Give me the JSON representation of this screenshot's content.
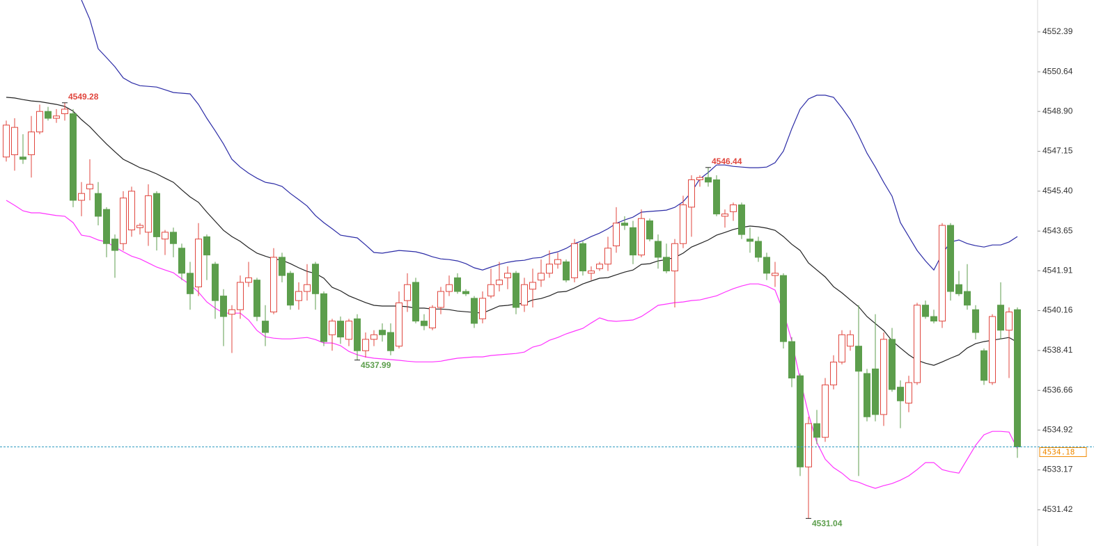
{
  "chart_data": {
    "type": "candlestick",
    "up_color": "#e0463e",
    "down_color": "#5c9e4c",
    "ylim": [
      4529.83,
      4553.79
    ],
    "yticks": [
      4552.39,
      4550.64,
      {
        "value": 4548.9,
        "label": "4548.90"
      },
      4547.15,
      {
        "value": 4545.4,
        "label": "4545.40"
      },
      4543.65,
      4541.91,
      4540.16,
      4538.41,
      4536.66,
      4534.92,
      4533.17,
      4531.42
    ],
    "open": [
      4546.9,
      4547.0,
      4546.9,
      4547.0,
      4548.0,
      4548.9,
      4548.6,
      4548.8,
      4548.8,
      4545.0,
      4545.5,
      4545.3,
      4544.6,
      4543.3,
      4543.1,
      4543.7,
      4543.8,
      4543.6,
      4545.3,
      4543.3,
      4543.6,
      4542.9,
      4541.8,
      4541.2,
      4543.4,
      4542.2,
      4540.8,
      4540.0,
      4540.2,
      4541.4,
      4541.5,
      4539.7,
      4540.1,
      4542.5,
      4541.8,
      4540.6,
      4541.0,
      4542.2,
      4540.9,
      4539.1,
      4539.7,
      4538.9,
      4539.8,
      4538.4,
      4538.9,
      4539.3,
      4539.2,
      4538.6,
      4540.6,
      4541.4,
      4539.7,
      4539.4,
      4540.3,
      4541.0,
      4541.6,
      4541.0,
      4540.7,
      4539.8,
      4540.8,
      4541.3,
      4541.6,
      4541.8,
      4540.4,
      4541.1,
      4541.5,
      4541.8,
      4542.2,
      4542.3,
      4541.6,
      4543.1,
      4541.8,
      4542.0,
      4542.2,
      4543.0,
      4544.0,
      4543.8,
      4542.6,
      4544.1,
      4543.2,
      4542.5,
      4541.9,
      4543.1,
      4544.7,
      4545.9,
      4546.0,
      4545.9,
      4544.3,
      4544.5,
      4544.8,
      4543.3,
      4543.2,
      4542.5,
      4541.7,
      4541.7,
      4538.8,
      4537.3,
      4533.3,
      4535.2,
      4534.6,
      4536.9,
      4537.9,
      4538.6,
      4538.6,
      4537.4,
      4537.6,
      4535.6,
      4538.9,
      4536.8,
      4536.1,
      4537.0,
      4540.4,
      4539.9,
      4539.7,
      4543.9,
      4541.3,
      4541.0,
      4540.2,
      4538.4,
      4537.0,
      4540.4,
      4539.3,
      4540.2
    ],
    "high": [
      4548.5,
      4548.6,
      4547.9,
      4548.7,
      4549.2,
      4549.1,
      4549.0,
      4549.28,
      4549.0,
      4545.8,
      4546.8,
      4545.8,
      4544.7,
      4543.5,
      4545.4,
      4545.6,
      4544.0,
      4545.7,
      4545.4,
      4543.7,
      4543.8,
      4543.1,
      4542.3,
      4544.0,
      4543.5,
      4542.3,
      4541.1,
      4540.4,
      4541.7,
      4542.3,
      4541.6,
      4540.4,
      4542.9,
      4542.7,
      4541.9,
      4541.4,
      4542.2,
      4542.3,
      4541.0,
      4539.8,
      4539.9,
      4539.8,
      4540.0,
      4539.2,
      4539.3,
      4539.6,
      4539.6,
      4541.0,
      4541.8,
      4541.6,
      4540.0,
      4540.4,
      4541.2,
      4541.7,
      4541.8,
      4541.1,
      4540.8,
      4541.0,
      4542.0,
      4542.3,
      4542.1,
      4541.9,
      4541.6,
      4542.0,
      4542.4,
      4542.8,
      4542.7,
      4542.4,
      4543.3,
      4543.2,
      4542.1,
      4542.3,
      4543.4,
      4544.7,
      4544.3,
      4544.1,
      4544.6,
      4544.2,
      4543.5,
      4543.1,
      4543.3,
      4545.2,
      4546.1,
      4546.1,
      4546.44,
      4546.1,
      4544.6,
      4544.9,
      4544.9,
      4543.8,
      4543.4,
      4542.7,
      4542.3,
      4541.8,
      4539.0,
      4537.4,
      4535.5,
      4535.8,
      4537.2,
      4538.2,
      4539.3,
      4539.3,
      4540.4,
      4537.6,
      4540.0,
      4539.2,
      4539.4,
      4537.1,
      4537.3,
      4540.5,
      4540.6,
      4540.2,
      4544.0,
      4544.0,
      4541.9,
      4542.2,
      4540.4,
      4538.5,
      4540.0,
      4541.4,
      4540.3,
      4540.3
    ],
    "low": [
      4546.7,
      4546.3,
      4546.6,
      4546.0,
      4547.9,
      4548.5,
      4548.4,
      4548.5,
      4544.7,
      4544.3,
      4545.0,
      4543.9,
      4542.5,
      4541.6,
      4542.8,
      4543.4,
      4543.5,
      4543.0,
      4542.8,
      4542.6,
      4542.5,
      4541.5,
      4540.2,
      4540.8,
      4541.5,
      4539.8,
      4538.6,
      4538.3,
      4539.8,
      4541.2,
      4539.7,
      4538.6,
      4540.0,
      4541.4,
      4540.2,
      4540.2,
      4540.6,
      4540.2,
      4538.6,
      4538.4,
      4538.7,
      4538.6,
      4537.99,
      4538.1,
      4538.6,
      4538.8,
      4538.2,
      4538.5,
      4540.1,
      4539.6,
      4539.3,
      4539.3,
      4540.0,
      4540.8,
      4540.9,
      4540.8,
      4539.4,
      4539.6,
      4540.7,
      4541.0,
      4541.1,
      4540.0,
      4540.1,
      4540.3,
      4541.2,
      4541.6,
      4542.0,
      4541.4,
      4541.4,
      4541.7,
      4541.5,
      4541.9,
      4541.9,
      4542.7,
      4543.7,
      4542.2,
      4542.5,
      4543.2,
      4542.0,
      4541.8,
      4540.3,
      4542.9,
      4543.4,
      4545.6,
      4545.6,
      4544.3,
      4543.8,
      4544.1,
      4543.3,
      4542.7,
      4542.3,
      4541.5,
      4541.2,
      4538.5,
      4536.8,
      4532.9,
      4531.04,
      4534.3,
      4534.4,
      4536.7,
      4537.8,
      4538.4,
      4532.9,
      4535.3,
      4535.3,
      4535.1,
      4536.6,
      4535.0,
      4535.7,
      4536.9,
      4539.8,
      4539.6,
      4539.4,
      4540.6,
      4540.8,
      4540.2,
      4538.9,
      4536.9,
      4536.9,
      4538.9,
      4537.2,
      4533.7
    ],
    "close": [
      4548.3,
      4548.2,
      4546.8,
      4548.0,
      4548.9,
      4548.6,
      4548.7,
      4549.0,
      4545.0,
      4545.3,
      4545.7,
      4544.3,
      4543.1,
      4542.8,
      4545.1,
      4545.4,
      4543.9,
      4545.2,
      4543.4,
      4543.6,
      4543.1,
      4541.8,
      4540.9,
      4543.3,
      4542.6,
      4540.6,
      4539.9,
      4540.2,
      4541.4,
      4541.6,
      4539.9,
      4539.2,
      4542.5,
      4541.7,
      4540.4,
      4541.0,
      4541.3,
      4540.9,
      4538.8,
      4539.7,
      4539.0,
      4539.7,
      4538.4,
      4538.9,
      4539.1,
      4539.1,
      4538.4,
      4540.5,
      4541.3,
      4539.7,
      4539.5,
      4540.3,
      4541.0,
      4541.3,
      4541.0,
      4540.9,
      4539.6,
      4540.7,
      4541.3,
      4541.5,
      4541.8,
      4540.3,
      4541.3,
      4541.4,
      4541.8,
      4542.2,
      4542.4,
      4541.5,
      4543.1,
      4541.9,
      4541.9,
      4542.2,
      4542.9,
      4544.0,
      4543.9,
      4542.6,
      4544.2,
      4543.3,
      4542.5,
      4541.9,
      4543.1,
      4544.8,
      4545.9,
      4546.0,
      4545.8,
      4544.4,
      4544.4,
      4544.8,
      4543.5,
      4543.2,
      4542.5,
      4541.8,
      4541.8,
      4538.8,
      4537.2,
      4533.3,
      4535.2,
      4534.6,
      4536.9,
      4537.9,
      4539.1,
      4539.1,
      4537.5,
      4535.5,
      4535.6,
      4538.9,
      4536.7,
      4536.2,
      4537.0,
      4540.4,
      4539.9,
      4539.7,
      4543.9,
      4541.0,
      4540.9,
      4540.4,
      4539.2,
      4537.1,
      4539.9,
      4539.3,
      4540.1,
      4534.18
    ],
    "lines": [
      {
        "color": "#2b2ba6",
        "values": [
          null,
          null,
          null,
          null,
          null,
          null,
          null,
          null,
          null,
          4553.79,
          4552.94,
          4551.65,
          4551.26,
          4550.86,
          4550.37,
          4550.16,
          4550.03,
          4550.0,
          4549.97,
          4549.85,
          4549.73,
          4549.7,
          4549.67,
          4549.21,
          4548.6,
          4548.05,
          4547.47,
          4546.8,
          4546.46,
          4546.19,
          4545.97,
          4545.79,
          4545.73,
          4545.61,
          4545.3,
          4545.03,
          4544.75,
          4544.33,
          4544.02,
          4543.75,
          4543.47,
          4543.41,
          4543.35,
          4543.04,
          4542.71,
          4542.68,
          4542.74,
          4542.8,
          4542.77,
          4542.74,
          4542.65,
          4542.52,
          4542.43,
          4542.4,
          4542.34,
          4542.22,
          4542.04,
          4541.94,
          4542.07,
          4542.19,
          4542.28,
          4542.34,
          4542.37,
          4542.46,
          4542.49,
          4542.65,
          4542.74,
          4542.89,
          4543.1,
          4543.23,
          4543.41,
          4543.56,
          4543.75,
          4543.99,
          4544.14,
          4544.26,
          4544.48,
          4544.51,
          4544.54,
          4544.57,
          4544.69,
          4544.94,
          4545.36,
          4545.94,
          4546.22,
          4546.55,
          4546.55,
          4546.49,
          4546.46,
          4546.43,
          4546.43,
          4546.46,
          4546.65,
          4547.16,
          4548.14,
          4549.0,
          4549.45,
          4549.61,
          4549.61,
          4549.52,
          4549.06,
          4548.54,
          4547.84,
          4547.07,
          4546.46,
          4545.79,
          4545.18,
          4544.02,
          4543.41,
          4542.8,
          4542.34,
          4541.94,
          4542.65,
          4543.17,
          4543.26,
          4543.1,
          4543.01,
          4542.95,
          4543.04,
          4543.04,
          4543.17,
          4543.41
        ]
      },
      {
        "color": "#222222",
        "values": [
          4549.52,
          4549.49,
          4549.42,
          4549.36,
          4549.33,
          4549.27,
          4549.21,
          4549.12,
          4548.91,
          4548.54,
          4548.23,
          4547.84,
          4547.47,
          4547.13,
          4546.8,
          4546.62,
          4546.43,
          4546.31,
          4546.16,
          4545.97,
          4545.79,
          4545.46,
          4545.15,
          4544.91,
          4544.48,
          4544.08,
          4543.68,
          4543.41,
          4543.2,
          4542.92,
          4542.68,
          4542.55,
          4542.43,
          4542.37,
          4542.22,
          4542.04,
          4541.88,
          4541.79,
          4541.58,
          4541.18,
          4541.03,
          4540.81,
          4540.66,
          4540.51,
          4540.39,
          4540.36,
          4540.36,
          4540.36,
          4540.33,
          4540.27,
          4540.27,
          4540.23,
          4540.23,
          4540.2,
          4540.14,
          4540.11,
          4540.08,
          4540.05,
          4540.2,
          4540.36,
          4540.39,
          4540.45,
          4540.48,
          4540.63,
          4540.69,
          4540.81,
          4540.97,
          4541.0,
          4541.15,
          4541.33,
          4541.46,
          4541.58,
          4541.61,
          4541.73,
          4541.85,
          4541.94,
          4542.19,
          4542.22,
          4542.34,
          4542.4,
          4542.49,
          4542.68,
          4542.95,
          4543.1,
          4543.26,
          4543.47,
          4543.59,
          4543.72,
          4543.81,
          4543.87,
          4543.84,
          4543.78,
          4543.68,
          4543.41,
          4543.07,
          4542.8,
          4542.25,
          4541.94,
          4541.64,
          4541.21,
          4540.94,
          4540.63,
          4540.33,
          4539.9,
          4539.59,
          4539.29,
          4538.83,
          4538.52,
          4538.22,
          4537.98,
          4537.85,
          4537.76,
          4537.91,
          4538.07,
          4538.22,
          4538.52,
          4538.71,
          4538.8,
          4538.86,
          4538.92,
          4538.98,
          4538.77
        ]
      },
      {
        "color": "#ff33ff",
        "values": [
          4545.0,
          4544.78,
          4544.54,
          4544.45,
          4544.45,
          4544.39,
          4544.33,
          4544.3,
          4544.02,
          4543.47,
          4543.41,
          4543.26,
          4543.17,
          4542.95,
          4542.74,
          4542.55,
          4542.43,
          4542.25,
          4542.07,
          4541.94,
          4541.82,
          4541.55,
          4541.3,
          4540.97,
          4540.54,
          4540.27,
          4540.05,
          4540.05,
          4540.05,
          4539.75,
          4539.29,
          4539.01,
          4538.95,
          4538.92,
          4538.92,
          4538.95,
          4538.98,
          4538.89,
          4538.74,
          4538.74,
          4538.62,
          4538.37,
          4538.22,
          4538.13,
          4538.07,
          4538.04,
          4538.01,
          4537.98,
          4537.94,
          4537.91,
          4537.91,
          4537.91,
          4537.94,
          4538.01,
          4538.07,
          4538.1,
          4538.13,
          4538.13,
          4538.19,
          4538.22,
          4538.25,
          4538.28,
          4538.34,
          4538.56,
          4538.65,
          4538.86,
          4538.98,
          4539.14,
          4539.26,
          4539.38,
          4539.62,
          4539.84,
          4539.72,
          4539.69,
          4539.72,
          4539.75,
          4539.9,
          4540.14,
          4540.39,
          4540.45,
          4540.51,
          4540.54,
          4540.6,
          4540.63,
          4540.72,
          4540.81,
          4540.97,
          4541.12,
          4541.24,
          4541.33,
          4541.33,
          4541.24,
          4541.06,
          4540.11,
          4538.83,
          4537.15,
          4535.62,
          4534.37,
          4533.64,
          4533.27,
          4533.03,
          4532.72,
          4532.63,
          4532.48,
          4532.36,
          4532.48,
          4532.57,
          4532.72,
          4532.91,
          4533.18,
          4533.49,
          4533.49,
          4533.18,
          4533.09,
          4533.03,
          4533.64,
          4534.25,
          4534.71,
          4534.86,
          4534.86,
          4534.83,
          4534.1
        ]
      }
    ],
    "annotations": [
      {
        "value": 4549.28,
        "index": 7,
        "side": "high",
        "color": "#e0463e"
      },
      {
        "value": 4546.44,
        "index": 84,
        "side": "high",
        "color": "#e0463e"
      },
      {
        "value": 4537.99,
        "index": 42,
        "side": "low",
        "color": "#5c9e4c"
      },
      {
        "value": 4531.04,
        "index": 96,
        "side": "low",
        "color": "#5c9e4c"
      }
    ],
    "last_price": 4534.18,
    "last_color": "#f08a00",
    "last_line_color": "#2f9ac0"
  }
}
